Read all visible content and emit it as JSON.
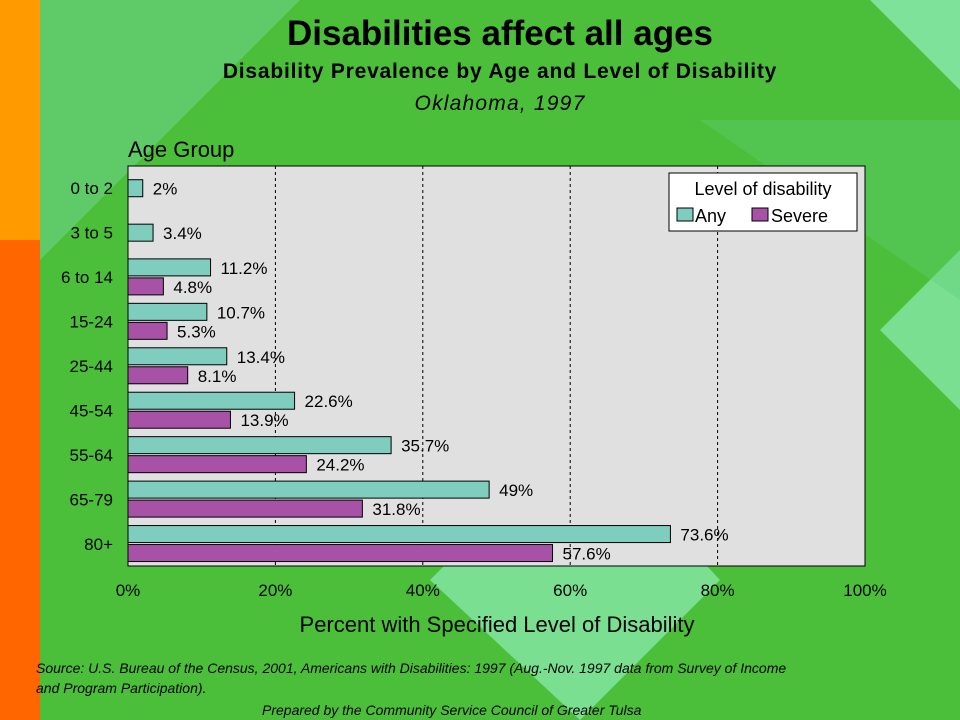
{
  "header": {
    "title": "Disabilities affect all ages",
    "subtitle": "Disability Prevalence by Age and Level of Disability",
    "place_year": "Oklahoma, 1997"
  },
  "chart_data": {
    "type": "bar",
    "orientation": "horizontal",
    "ylabel": "Age Group",
    "xlabel": "Percent with Specified Level of Disability",
    "categories": [
      "0 to 2",
      "3 to 5",
      "6 to 14",
      "15-24",
      "25-44",
      "45-54",
      "55-64",
      "65-79",
      "80+"
    ],
    "series": [
      {
        "name": "Any",
        "values": [
          2,
          3.4,
          11.2,
          10.7,
          13.4,
          22.6,
          35.7,
          49,
          73.6
        ],
        "labels": [
          "2%",
          "3.4%",
          "11.2%",
          "10.7%",
          "13.4%",
          "22.6%",
          "35.7%",
          "49%",
          "73.6%"
        ],
        "color": "#7fcdbf"
      },
      {
        "name": "Severe",
        "values": [
          null,
          null,
          4.8,
          5.3,
          8.1,
          13.9,
          24.2,
          31.8,
          57.6
        ],
        "labels": [
          null,
          null,
          "4.8%",
          "5.3%",
          "8.1%",
          "13.9%",
          "24.2%",
          "31.8%",
          "57.6%"
        ],
        "color": "#a752a7"
      }
    ],
    "xlim": [
      0,
      100
    ],
    "xticks": [
      0,
      20,
      40,
      60,
      80,
      100
    ],
    "xtick_labels": [
      "0%",
      "20%",
      "40%",
      "60%",
      "80%",
      "100%"
    ],
    "grid": "vertical dashed",
    "legend": {
      "title": "Level of disability",
      "placement": "top-right"
    },
    "plot_background": "#e0e0e0"
  },
  "footer": {
    "source_line1": "Source:  U.S. Bureau of the Census, 2001, Americans with Disabilities:  1997 (Aug.-Nov. 1997 data from Survey of Income",
    "source_line2": "and Program Participation).",
    "prepared_by": "Prepared by the Community Service Council of Greater Tulsa"
  },
  "theme": {
    "background_green": "#4cbf3a",
    "left_strip_orange": "#ff9a00",
    "left_strip_red": "#ff6600",
    "light_green": "#7fe29a"
  }
}
